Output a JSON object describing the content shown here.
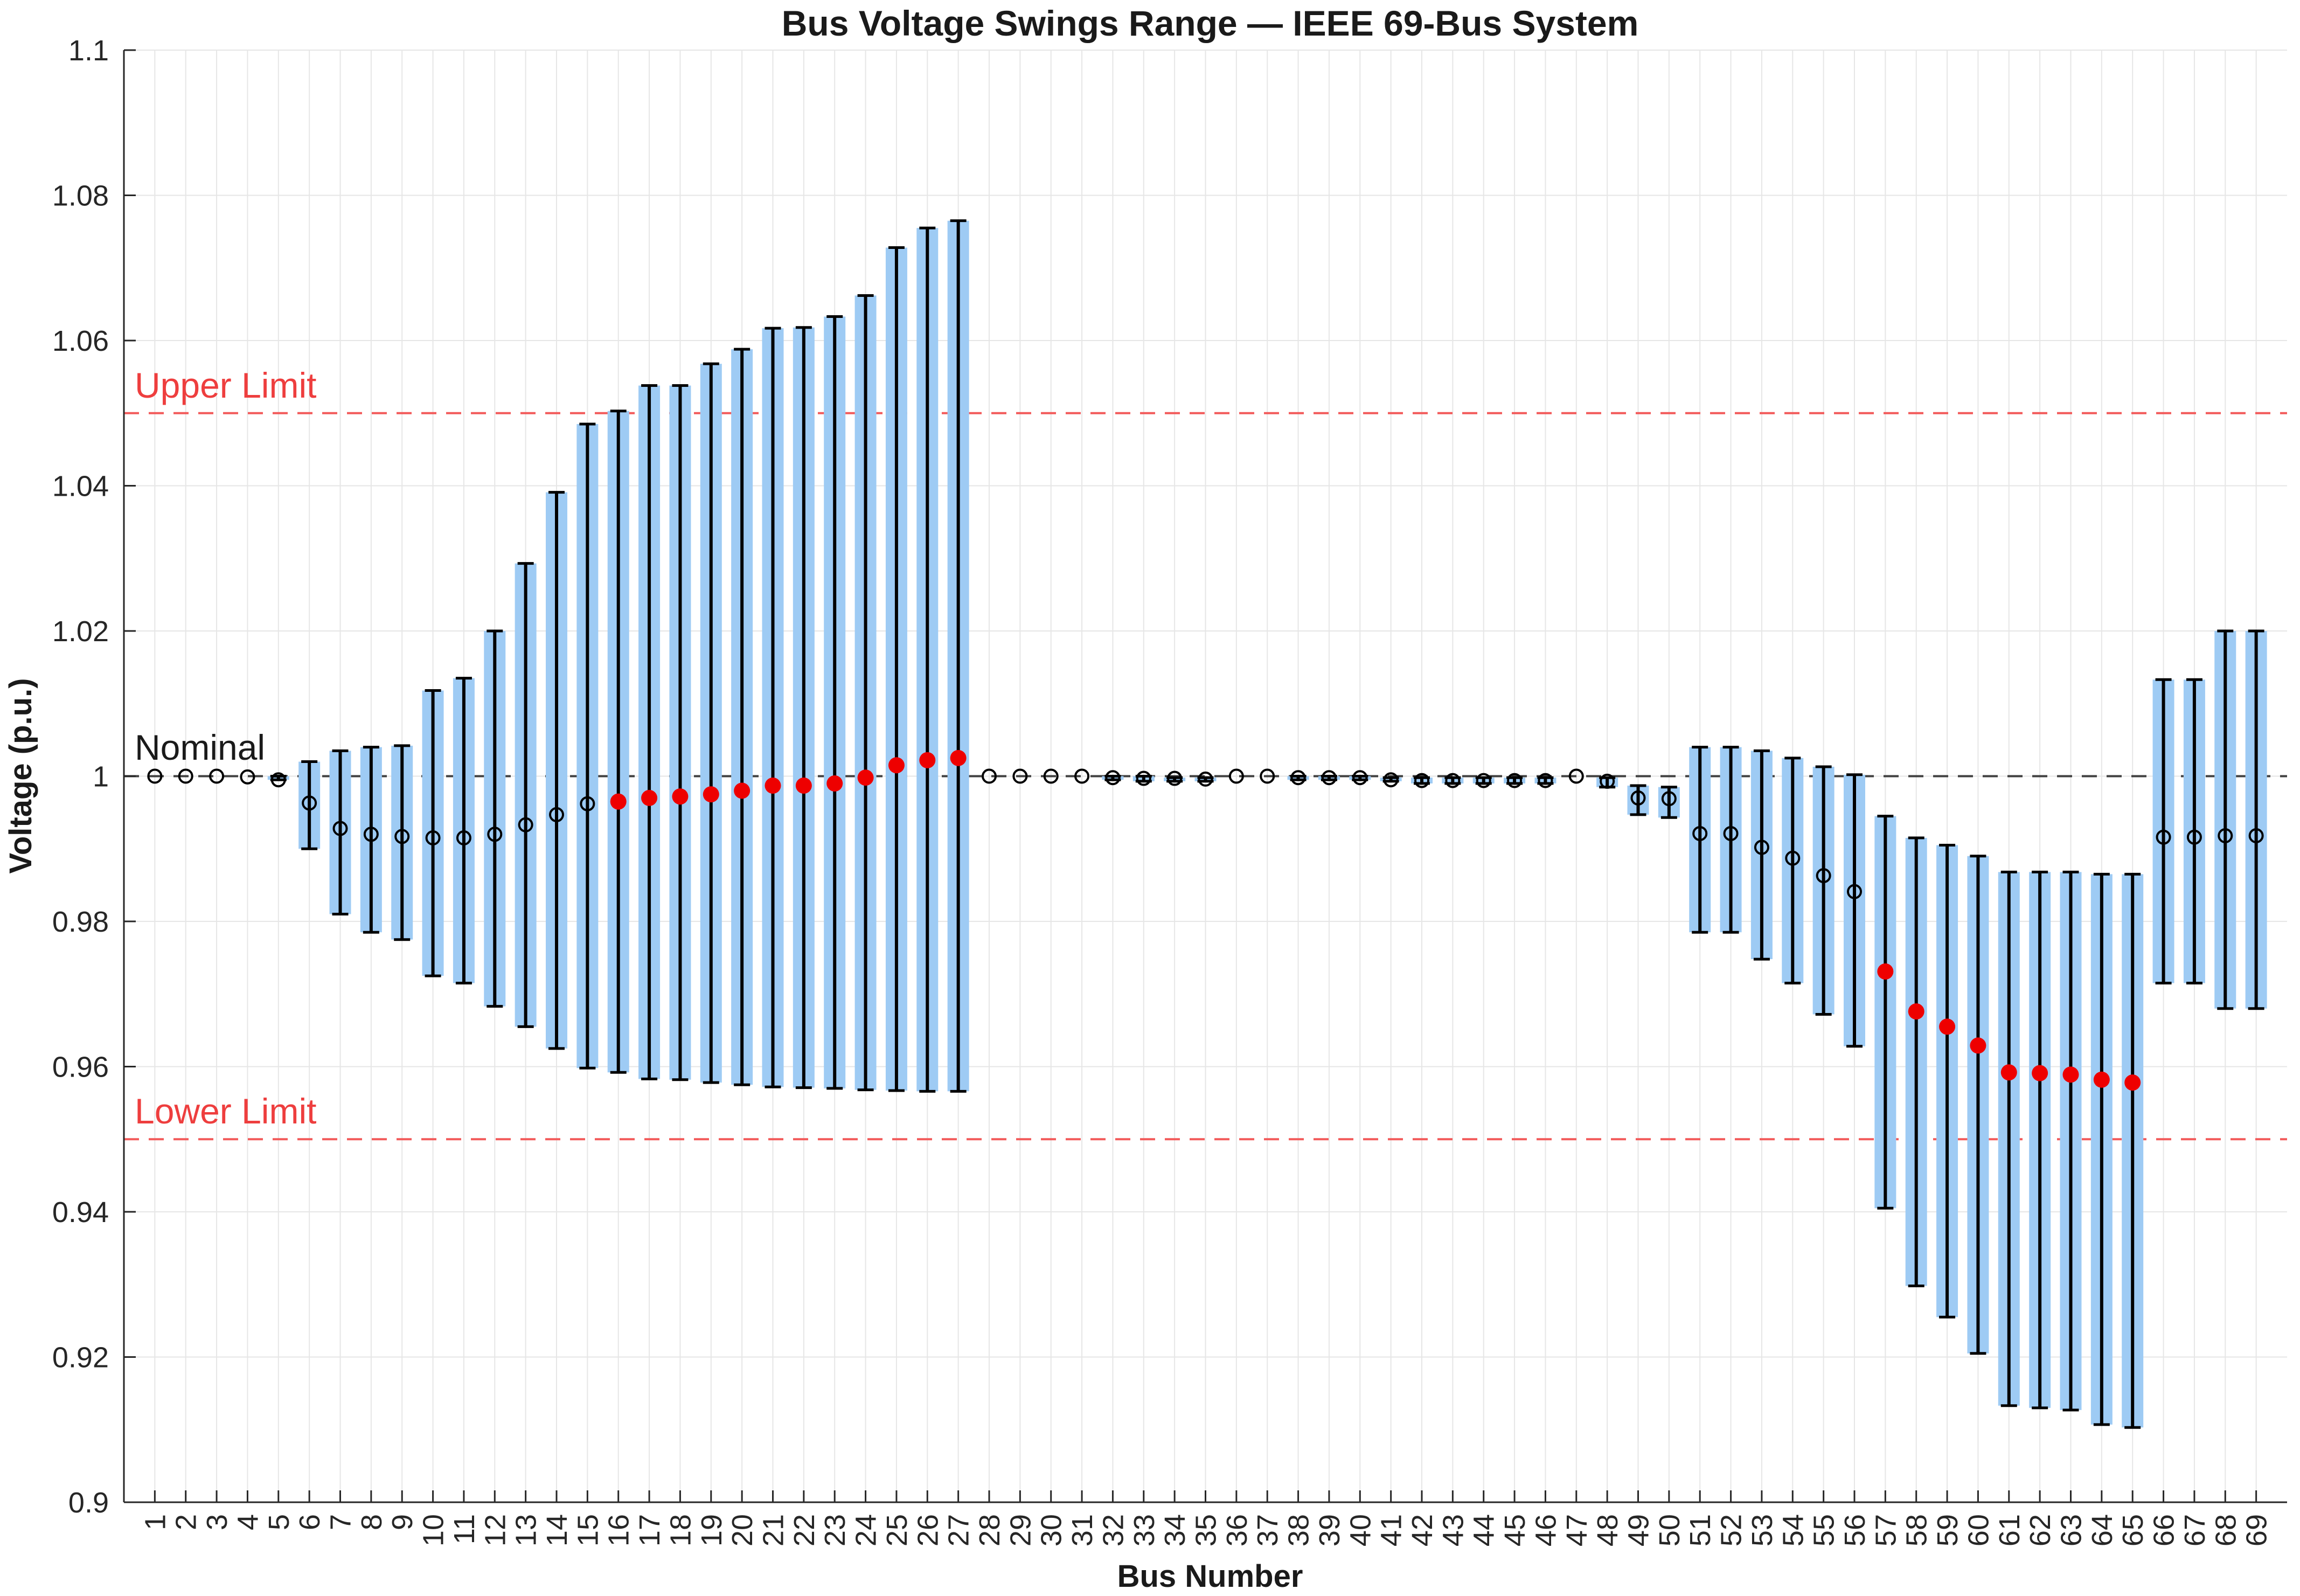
{
  "chart_data": {
    "type": "errorbar-range",
    "title": "Bus Voltage Swings Range — IEEE 69-Bus System",
    "xlabel": "Bus Number",
    "ylabel": "Voltage (p.u.)",
    "xlim": [
      0,
      70
    ],
    "ylim": [
      0.9,
      1.1
    ],
    "yticks": [
      0.9,
      0.92,
      0.94,
      0.96,
      0.98,
      1,
      1.02,
      1.04,
      1.06,
      1.08,
      1.1
    ],
    "ytick_labels": [
      "0.9",
      "0.92",
      "0.94",
      "0.96",
      "0.98",
      "1",
      "1.02",
      "1.04",
      "1.06",
      "1.08",
      "1.1"
    ],
    "grid": true,
    "buses": [
      1,
      2,
      3,
      4,
      5,
      6,
      7,
      8,
      9,
      10,
      11,
      12,
      13,
      14,
      15,
      16,
      17,
      18,
      19,
      20,
      21,
      22,
      23,
      24,
      25,
      26,
      27,
      28,
      29,
      30,
      31,
      32,
      33,
      34,
      35,
      36,
      37,
      38,
      39,
      40,
      41,
      42,
      43,
      44,
      45,
      46,
      47,
      48,
      49,
      50,
      51,
      52,
      53,
      54,
      55,
      56,
      57,
      58,
      59,
      60,
      61,
      62,
      63,
      64,
      65,
      66,
      67,
      68,
      69
    ],
    "v_min": [
      1.0,
      1.0,
      1.0,
      1.0,
      0.9995,
      0.99,
      0.981,
      0.9785,
      0.9775,
      0.9725,
      0.9715,
      0.9683,
      0.9655,
      0.9625,
      0.9598,
      0.9592,
      0.9583,
      0.9582,
      0.9578,
      0.9575,
      0.9572,
      0.9571,
      0.957,
      0.9568,
      0.9567,
      0.9566,
      0.9566,
      1.0,
      1.0,
      1.0,
      1.0,
      0.9995,
      0.9993,
      0.9993,
      0.9993,
      1.0,
      1.0,
      0.9995,
      0.9995,
      0.9995,
      0.9993,
      0.999,
      0.999,
      0.999,
      0.999,
      0.999,
      1.0,
      0.9985,
      0.9947,
      0.9943,
      0.9785,
      0.9785,
      0.9748,
      0.9715,
      0.9672,
      0.9628,
      0.9405,
      0.9298,
      0.9255,
      0.9205,
      0.9133,
      0.913,
      0.9127,
      0.9107,
      0.9103,
      0.9715,
      0.9715,
      0.968,
      0.968
    ],
    "v_max": [
      1.0,
      1.0,
      1.0,
      1.0,
      1.0,
      1.002,
      1.0035,
      1.004,
      1.0042,
      1.0118,
      1.0135,
      1.02,
      1.0293,
      1.0391,
      1.0485,
      1.0503,
      1.0538,
      1.0538,
      1.0568,
      1.0588,
      1.0617,
      1.0618,
      1.0633,
      1.0662,
      1.0728,
      1.0755,
      1.0765,
      1.0,
      1.0,
      1.0,
      1.0,
      1.0,
      1.0,
      0.9998,
      0.9998,
      1.0,
      1.0,
      1.0,
      1.0,
      1.0,
      0.9998,
      0.9998,
      0.9998,
      0.9998,
      0.9998,
      0.9998,
      1.0,
      0.9998,
      0.9987,
      0.9985,
      1.004,
      1.004,
      1.0035,
      1.0025,
      1.0013,
      1.0002,
      0.9945,
      0.9915,
      0.9905,
      0.989,
      0.9868,
      0.9868,
      0.9868,
      0.9865,
      0.9865,
      1.0133,
      1.0133,
      1.02,
      1.02
    ],
    "v_nominal": [
      1.0,
      1.0,
      1.0,
      0.9999,
      0.9995,
      0.9963,
      0.9928,
      0.992,
      0.9917,
      0.9915,
      0.9915,
      0.992,
      0.9933,
      0.9947,
      0.9962,
      0.9965,
      0.997,
      0.9972,
      0.9975,
      0.998,
      0.9987,
      0.9987,
      0.999,
      0.9998,
      1.0015,
      1.0022,
      1.0025,
      1.0,
      1.0,
      1.0,
      1.0,
      0.9998,
      0.9997,
      0.9997,
      0.9996,
      1.0,
      1.0,
      0.9998,
      0.9998,
      0.9998,
      0.9995,
      0.9994,
      0.9994,
      0.9994,
      0.9994,
      0.9994,
      1.0,
      0.9993,
      0.997,
      0.9969,
      0.9921,
      0.9921,
      0.9902,
      0.9887,
      0.9863,
      0.9841,
      0.9731,
      0.9676,
      0.9655,
      0.9629,
      0.9592,
      0.9591,
      0.9589,
      0.9582,
      0.9578,
      0.9916,
      0.9916,
      0.9918,
      0.9918
    ],
    "highlighted_buses": [
      16,
      17,
      18,
      19,
      20,
      21,
      22,
      23,
      24,
      25,
      26,
      27,
      57,
      58,
      59,
      60,
      61,
      62,
      63,
      64,
      65
    ],
    "reference_lines": [
      {
        "label": "Upper Limit",
        "value": 1.05,
        "color": "#f25a5a",
        "style": "dashed"
      },
      {
        "label": "Nominal",
        "value": 1.0,
        "color": "#404040",
        "style": "dashed"
      },
      {
        "label": "Lower Limit",
        "value": 0.95,
        "color": "#f25a5a",
        "style": "dashed"
      }
    ],
    "colors": {
      "range_bar": "#9ecbf4",
      "error_bar": "#000000",
      "marker_open": "#000000",
      "marker_highlight": "#ee0000",
      "upper_limit_text": "#ee3e3e",
      "lower_limit_text": "#ee3e3e",
      "nominal_text": "#1a1a1a"
    }
  }
}
